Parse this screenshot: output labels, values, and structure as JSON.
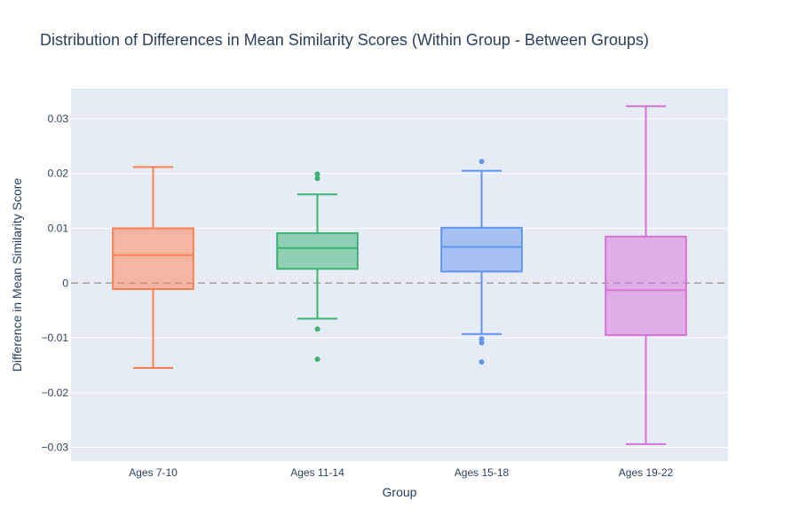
{
  "chart_data": {
    "type": "box",
    "title": "Distribution of Differences in Mean Similarity Scores (Within Group - Between Groups)",
    "xlabel": "Group",
    "ylabel": "Difference in Mean Similarity Score",
    "ylim": [
      -0.0325,
      0.0355
    ],
    "yticks": [
      0.03,
      0.02,
      0.01,
      0,
      -0.01,
      -0.02,
      -0.03
    ],
    "ytick_labels": [
      "0.03",
      "0.02",
      "0.01",
      "0",
      "−0.01",
      "−0.02",
      "−0.03"
    ],
    "reference_line": {
      "y": 0,
      "style": "dashed"
    },
    "grid": true,
    "background": "#e5ecf6",
    "series": [
      {
        "category": "Ages 7-10",
        "color": "#ff7f50",
        "whisker_low": -0.0155,
        "q1": -0.0011,
        "median": 0.0051,
        "q3": 0.01,
        "whisker_high": 0.0212,
        "outliers": []
      },
      {
        "category": "Ages 11-14",
        "color": "#3cb371",
        "whisker_low": -0.0065,
        "q1": 0.0026,
        "median": 0.0064,
        "q3": 0.0091,
        "whisker_high": 0.0162,
        "outliers": [
          0.0199,
          0.0191,
          -0.0084,
          -0.0139
        ]
      },
      {
        "category": "Ages 15-18",
        "color": "#6495ed",
        "whisker_low": -0.0093,
        "q1": 0.0021,
        "median": 0.0066,
        "q3": 0.0101,
        "whisker_high": 0.0205,
        "outliers": [
          0.0222,
          -0.0102,
          -0.0109,
          -0.0144
        ]
      },
      {
        "category": "Ages 19-22",
        "color": "#da70d6",
        "whisker_low": -0.0294,
        "q1": -0.0095,
        "median": -0.0013,
        "q3": 0.0085,
        "whisker_high": 0.0323,
        "outliers": []
      }
    ]
  }
}
